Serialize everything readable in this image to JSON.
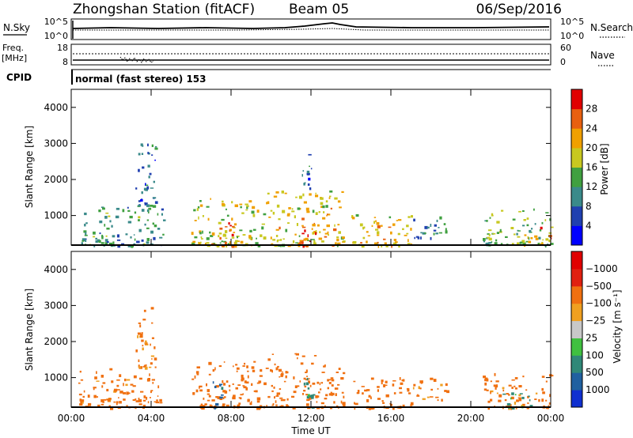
{
  "header": {
    "title": "Zhongshan Station (fitACF)",
    "beam": "Beam 05",
    "date": "06/Sep/2016"
  },
  "status_panels": {
    "nsky_label": "N.Sky",
    "nsearch_label": "N.Search",
    "freq_label_1": "Freq.",
    "freq_label_2": "[MHz]",
    "nave_label": "Nave",
    "cpid_label": "CPID",
    "cpid_text": "normal (fast stereo) 153",
    "noise_ticks": [
      "10^5",
      "10^0"
    ],
    "freq_ticks": [
      "18",
      "8"
    ],
    "nave_ticks": [
      "60",
      "0"
    ]
  },
  "chart_data": [
    {
      "type": "heatmap",
      "title": "",
      "xlabel": "Time UT",
      "ylabel": "Slant Range [km]",
      "x_ticks": [
        "00:00",
        "04:00",
        "08:00",
        "12:00",
        "16:00",
        "20:00",
        "00:00"
      ],
      "xlim": [
        0,
        24
      ],
      "y_ticks": [
        1000,
        2000,
        3000,
        4000
      ],
      "ylim": [
        180,
        4500
      ],
      "colorbar": {
        "label": "Power [dB]",
        "ticks": [
          4,
          8,
          12,
          16,
          20,
          24,
          28
        ],
        "colors": [
          "#0000ff",
          "#2040b0",
          "#3a8a8a",
          "#40a040",
          "#c8c820",
          "#f0a000",
          "#e86010",
          "#e00000"
        ]
      },
      "echo_regions": [
        {
          "t_start": 0.3,
          "t_end": 4.6,
          "range_min": 180,
          "range_max": 1300,
          "power_db": 12
        },
        {
          "t_start": 3.2,
          "t_end": 4.2,
          "range_min": 1300,
          "range_max": 3100,
          "power_db": 8
        },
        {
          "t_start": 6.0,
          "t_end": 9.8,
          "range_min": 180,
          "range_max": 1500,
          "power_db": 18
        },
        {
          "t_start": 7.0,
          "t_end": 8.2,
          "range_min": 180,
          "range_max": 900,
          "power_db": 26
        },
        {
          "t_start": 9.8,
          "t_end": 13.6,
          "range_min": 180,
          "range_max": 1700,
          "power_db": 20
        },
        {
          "t_start": 11.3,
          "t_end": 12.3,
          "range_min": 180,
          "range_max": 700,
          "power_db": 30
        },
        {
          "t_start": 11.5,
          "t_end": 12.0,
          "range_min": 1700,
          "range_max": 2900,
          "power_db": 8
        },
        {
          "t_start": 14.0,
          "t_end": 17.0,
          "range_min": 180,
          "range_max": 1100,
          "power_db": 20
        },
        {
          "t_start": 17.0,
          "t_end": 18.8,
          "range_min": 400,
          "range_max": 1000,
          "power_db": 10
        },
        {
          "t_start": 20.5,
          "t_end": 24.0,
          "range_min": 180,
          "range_max": 1200,
          "power_db": 14
        },
        {
          "t_start": 22.5,
          "t_end": 24.0,
          "range_min": 180,
          "range_max": 700,
          "power_db": 24
        }
      ]
    },
    {
      "type": "heatmap",
      "title": "",
      "xlabel": "Time UT",
      "ylabel": "Slant Range [km]",
      "x_ticks": [
        "00:00",
        "04:00",
        "08:00",
        "12:00",
        "16:00",
        "20:00",
        "00:00"
      ],
      "xlim": [
        0,
        24
      ],
      "y_ticks": [
        1000,
        2000,
        3000,
        4000
      ],
      "ylim": [
        180,
        4500
      ],
      "colorbar": {
        "label": "Velocity [m s⁻¹]",
        "ticks": [
          "1000",
          "500",
          "100",
          "25",
          "−25",
          "−100",
          "−500",
          "−1000"
        ],
        "colors": [
          "#1030d0",
          "#2060a0",
          "#308878",
          "#40c040",
          "#c8c8c8",
          "#f0a020",
          "#f07010",
          "#e02010",
          "#e00000"
        ]
      },
      "echo_regions": [
        {
          "t_start": 0.3,
          "t_end": 4.6,
          "range_min": 180,
          "range_max": 1300,
          "velocity": -200
        },
        {
          "t_start": 3.2,
          "t_end": 4.2,
          "range_min": 1300,
          "range_max": 3100,
          "velocity": -150
        },
        {
          "t_start": 6.0,
          "t_end": 9.8,
          "range_min": 180,
          "range_max": 1500,
          "velocity": -300
        },
        {
          "t_start": 7.0,
          "t_end": 7.6,
          "range_min": 180,
          "range_max": 900,
          "velocity": 600
        },
        {
          "t_start": 9.8,
          "t_end": 13.6,
          "range_min": 180,
          "range_max": 1700,
          "velocity": -300
        },
        {
          "t_start": 11.6,
          "t_end": 12.1,
          "range_min": 180,
          "range_max": 1000,
          "velocity": 200
        },
        {
          "t_start": 14.0,
          "t_end": 17.0,
          "range_min": 180,
          "range_max": 1100,
          "velocity": -250
        },
        {
          "t_start": 17.0,
          "t_end": 18.8,
          "range_min": 400,
          "range_max": 1000,
          "velocity": -150
        },
        {
          "t_start": 20.5,
          "t_end": 24.0,
          "range_min": 180,
          "range_max": 1200,
          "velocity": -200
        },
        {
          "t_start": 21.5,
          "t_end": 23.0,
          "range_min": 180,
          "range_max": 600,
          "velocity": 150
        }
      ]
    }
  ]
}
